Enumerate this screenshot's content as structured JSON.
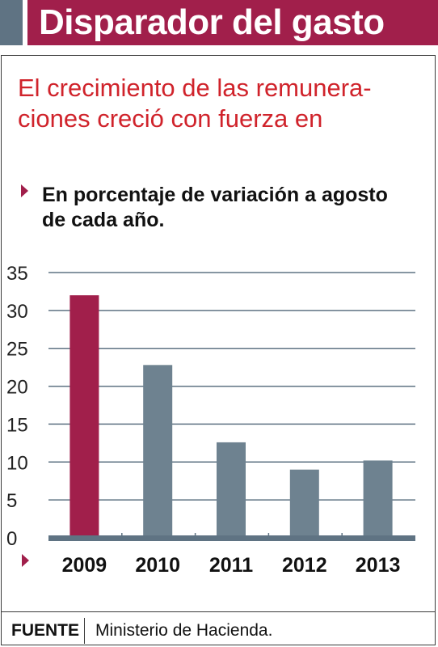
{
  "header": {
    "title": "Disparador del gasto"
  },
  "headline": "El crecimiento de las remunera-ciones creció con fuerza en",
  "subtitle": "En porcentaje de variación a agosto de cada año.",
  "footer": {
    "label": "FUENTE",
    "source": "Ministerio de Hacienda."
  },
  "colors": {
    "highlight": "#a11f4b",
    "bar": "#6e8290",
    "grid": "#5f7383",
    "title_bg": "#a11f4b",
    "accent": "#5f7383",
    "headline": "#d0232b"
  },
  "chart_data": {
    "type": "bar",
    "categories": [
      "2009",
      "2010",
      "2011",
      "2012",
      "2013"
    ],
    "values": [
      32,
      22.8,
      12.6,
      9,
      10.2
    ],
    "highlight_index": 0,
    "ylim": [
      0,
      35
    ],
    "yticks": [
      "0",
      "5",
      "10",
      "15",
      "20",
      "25",
      "30",
      "35"
    ],
    "grid": true,
    "title": "",
    "xlabel": "",
    "ylabel": ""
  }
}
